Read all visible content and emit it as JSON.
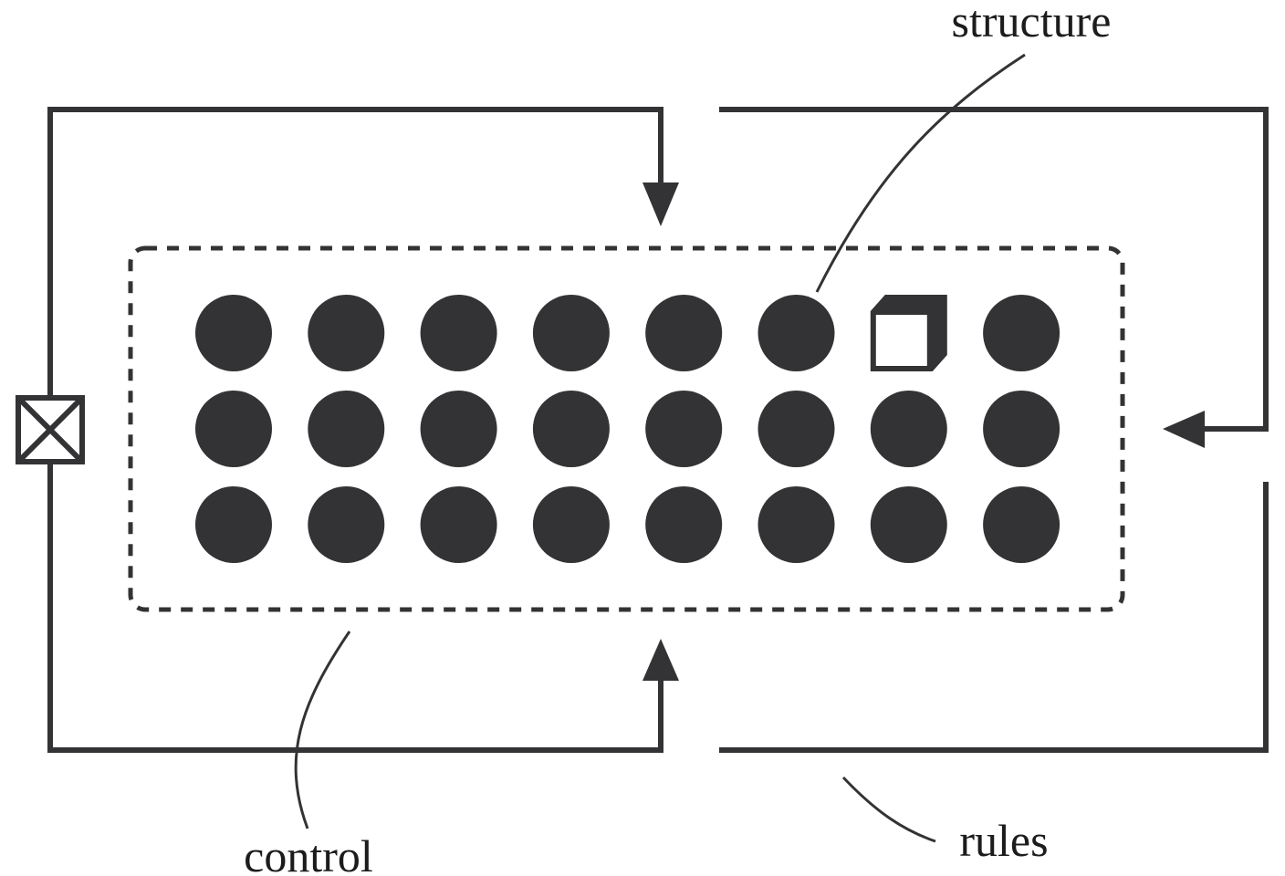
{
  "diagram": {
    "labels": {
      "structure": "structure",
      "control": "control",
      "rules": "rules"
    },
    "grid": {
      "rows": 3,
      "columns": 8,
      "cells": [
        [
          "dot",
          "dot",
          "dot",
          "dot",
          "dot",
          "dot",
          "box",
          "dot"
        ],
        [
          "dot",
          "dot",
          "dot",
          "dot",
          "dot",
          "dot",
          "dot",
          "dot"
        ],
        [
          "dot",
          "dot",
          "dot",
          "dot",
          "dot",
          "dot",
          "dot",
          "dot"
        ]
      ]
    },
    "colors": {
      "ink": "#333336",
      "background": "#ffffff"
    },
    "icons": {
      "left_terminal": "crossed-box-icon",
      "top_arrow": "arrow-down-icon",
      "bottom_arrow": "arrow-up-icon",
      "right_arrow": "arrow-left-icon",
      "grid_cell": "filled-circle-icon",
      "grid_special_cell": "open-cube-icon"
    }
  }
}
